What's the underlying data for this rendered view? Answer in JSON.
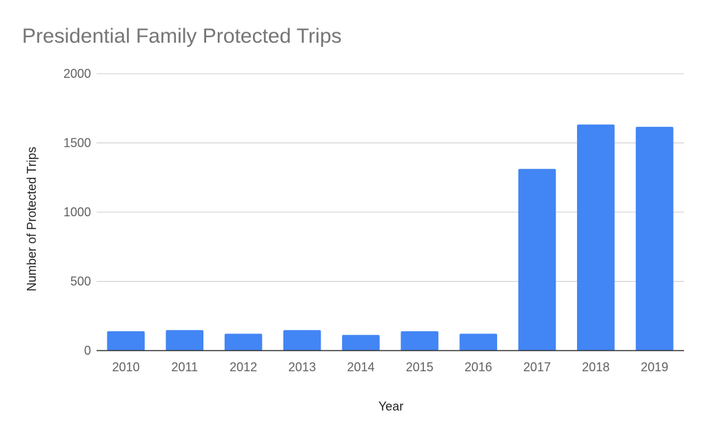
{
  "chart_data": {
    "type": "bar",
    "title": "Presidential Family Protected Trips",
    "xlabel": "Year",
    "ylabel": "Number of Protected Trips",
    "categories": [
      "2010",
      "2011",
      "2012",
      "2013",
      "2014",
      "2015",
      "2016",
      "2017",
      "2018",
      "2019"
    ],
    "series": [
      {
        "values": [
          140,
          148,
          122,
          148,
          113,
          140,
          122,
          1312,
          1633,
          1616
        ]
      }
    ],
    "ylim": [
      0,
      2000
    ],
    "yticks": [
      0,
      500,
      1000,
      1500,
      2000
    ],
    "grid": true,
    "legend": "none",
    "bar_color": "#4285f4"
  }
}
